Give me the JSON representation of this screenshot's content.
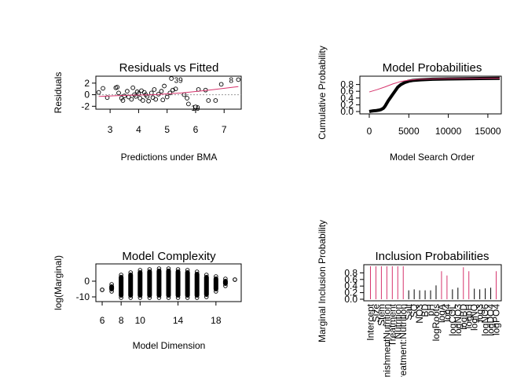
{
  "chart_data": [
    {
      "id": "resid",
      "type": "scatter",
      "title": "Residuals vs Fitted",
      "xlabel": "Predictions under BMA",
      "ylabel": "Residuals",
      "xlim": [
        2.5,
        7.6
      ],
      "ylim": [
        -2.5,
        3.2
      ],
      "xticks": [
        3,
        4,
        5,
        6,
        7
      ],
      "yticks": [
        -2,
        0,
        2
      ],
      "points": [
        [
          2.6,
          0.4
        ],
        [
          2.75,
          1.1
        ],
        [
          2.9,
          -0.5
        ],
        [
          3.2,
          1.2
        ],
        [
          3.25,
          1.3
        ],
        [
          3.3,
          0.3
        ],
        [
          3.4,
          -0.6
        ],
        [
          3.45,
          -1.0
        ],
        [
          3.5,
          -0.2
        ],
        [
          3.6,
          0.6
        ],
        [
          3.65,
          -0.4
        ],
        [
          3.75,
          -0.8
        ],
        [
          3.8,
          1.2
        ],
        [
          3.85,
          0.0
        ],
        [
          3.9,
          -0.3
        ],
        [
          3.95,
          0.5
        ],
        [
          4.0,
          0.2
        ],
        [
          4.05,
          -0.6
        ],
        [
          4.1,
          0.7
        ],
        [
          4.15,
          -1.0
        ],
        [
          4.2,
          0.4
        ],
        [
          4.25,
          0.0
        ],
        [
          4.3,
          -0.3
        ],
        [
          4.35,
          -1.1
        ],
        [
          4.45,
          0.3
        ],
        [
          4.5,
          -0.5
        ],
        [
          4.55,
          0.9
        ],
        [
          4.6,
          -0.8
        ],
        [
          4.7,
          0.1
        ],
        [
          4.8,
          0.6
        ],
        [
          4.85,
          -0.9
        ],
        [
          4.9,
          1.5
        ],
        [
          5.0,
          -0.4
        ],
        [
          5.1,
          0.3
        ],
        [
          5.15,
          2.8
        ],
        [
          5.2,
          0.8
        ],
        [
          5.3,
          1.0
        ],
        [
          5.6,
          0.0
        ],
        [
          5.7,
          -0.6
        ],
        [
          5.75,
          -1.6
        ],
        [
          6.0,
          -2.1
        ],
        [
          6.1,
          0.9
        ],
        [
          6.35,
          0.8
        ],
        [
          6.45,
          -1.0
        ],
        [
          6.7,
          -1.0
        ],
        [
          6.9,
          1.8
        ],
        [
          7.5,
          2.6
        ]
      ],
      "trend": [
        [
          2.6,
          -0.3
        ],
        [
          3.5,
          -0.1
        ],
        [
          4.5,
          0.0
        ],
        [
          5.5,
          0.3
        ],
        [
          6.5,
          0.8
        ],
        [
          7.5,
          1.4
        ]
      ],
      "labels": [
        {
          "text": "39",
          "x": 5.4,
          "y": 2.6
        },
        {
          "text": "8",
          "x": 7.25,
          "y": 2.6
        },
        {
          "text": "19",
          "x": 6.0,
          "y": -2.2
        }
      ]
    },
    {
      "id": "probs",
      "type": "line",
      "title": "Model Probabilities",
      "xlabel": "Model Search Order",
      "ylabel": "Cumulative Probability",
      "xlim": [
        0,
        16500
      ],
      "ylim": [
        0,
        1.0
      ],
      "xticks": [
        0,
        5000,
        10000,
        15000
      ],
      "yticks": [
        0.0,
        0.2,
        0.4,
        0.6,
        0.8
      ],
      "curve": [
        [
          0,
          0.0
        ],
        [
          200,
          0.01
        ],
        [
          500,
          0.02
        ],
        [
          900,
          0.03
        ],
        [
          1200,
          0.04
        ],
        [
          1500,
          0.06
        ],
        [
          1800,
          0.1
        ],
        [
          2000,
          0.16
        ],
        [
          2200,
          0.24
        ],
        [
          2400,
          0.32
        ],
        [
          2700,
          0.42
        ],
        [
          3000,
          0.52
        ],
        [
          3300,
          0.62
        ],
        [
          3600,
          0.72
        ],
        [
          4000,
          0.8
        ],
        [
          4500,
          0.86
        ],
        [
          5000,
          0.9
        ],
        [
          5500,
          0.92
        ],
        [
          6500,
          0.94
        ],
        [
          8000,
          0.955
        ],
        [
          10000,
          0.965
        ],
        [
          12000,
          0.972
        ],
        [
          14000,
          0.978
        ],
        [
          16500,
          0.982
        ]
      ],
      "trend": [
        [
          0,
          0.58
        ],
        [
          1000,
          0.65
        ],
        [
          2000,
          0.73
        ],
        [
          3000,
          0.82
        ],
        [
          4000,
          0.89
        ],
        [
          5000,
          0.93
        ],
        [
          6500,
          0.955
        ],
        [
          9000,
          0.97
        ],
        [
          12000,
          0.978
        ],
        [
          16500,
          0.985
        ]
      ]
    },
    {
      "id": "complexity",
      "type": "scatter",
      "title": "Model Complexity",
      "xlabel": "Model Dimension",
      "ylabel": "log(Marginal)",
      "xlim": [
        5.5,
        20.5
      ],
      "ylim": [
        -12,
        10
      ],
      "xticks": [
        6,
        8,
        10,
        14,
        18
      ],
      "yticks": [
        -10,
        0
      ],
      "columns": [
        {
          "x": 6,
          "min": -5.5,
          "max": -5.5
        },
        {
          "x": 7,
          "min": -6.5,
          "max": -2.0
        },
        {
          "x": 8,
          "min": -10.5,
          "max": 4.0
        },
        {
          "x": 9,
          "min": -10.5,
          "max": 5.5
        },
        {
          "x": 10,
          "min": -10.5,
          "max": 7.0
        },
        {
          "x": 11,
          "min": -10.5,
          "max": 7.5
        },
        {
          "x": 12,
          "min": -10.5,
          "max": 8.0
        },
        {
          "x": 13,
          "min": -10.5,
          "max": 8.0
        },
        {
          "x": 14,
          "min": -10.5,
          "max": 7.5
        },
        {
          "x": 15,
          "min": -10.5,
          "max": 7.0
        },
        {
          "x": 16,
          "min": -10.5,
          "max": 6.0
        },
        {
          "x": 17,
          "min": -10.0,
          "max": 4.0
        },
        {
          "x": 18,
          "min": -6.5,
          "max": 3.0
        },
        {
          "x": 19,
          "min": -3.0,
          "max": 1.5
        },
        {
          "x": 20,
          "min": 1.0,
          "max": 1.0
        }
      ]
    },
    {
      "id": "inclusion",
      "type": "bar",
      "title": "Inclusion Probabilities",
      "ylabel": "Marginal Inclusion Probability",
      "ylim": [
        0,
        1.0
      ],
      "yticks": [
        0.0,
        0.2,
        0.4,
        0.6,
        0.8
      ],
      "categories": [
        "Intercept",
        "Size",
        "Stem",
        "GarnishmentNutrition",
        "Treatment",
        "Nutrition",
        "Treatment:Nutrition",
        "Salt",
        "SQ",
        "NO3",
        "BD",
        "pH",
        "logRoots",
        "logA",
        "log4",
        "logCOL",
        "logNO3",
        "logBD",
        "logpH",
        "logNQ",
        "log3",
        "logNO6",
        "logDO4",
        "logPO4"
      ],
      "values": [
        1.0,
        1.0,
        1.0,
        1.0,
        1.0,
        1.0,
        1.0,
        0.27,
        0.3,
        0.27,
        0.27,
        0.27,
        0.42,
        0.85,
        0.72,
        0.3,
        0.35,
        0.97,
        0.85,
        0.32,
        0.3,
        0.33,
        0.35,
        0.85
      ],
      "bar_color": "#d6336c",
      "black_bar_color": "#000000"
    }
  ]
}
